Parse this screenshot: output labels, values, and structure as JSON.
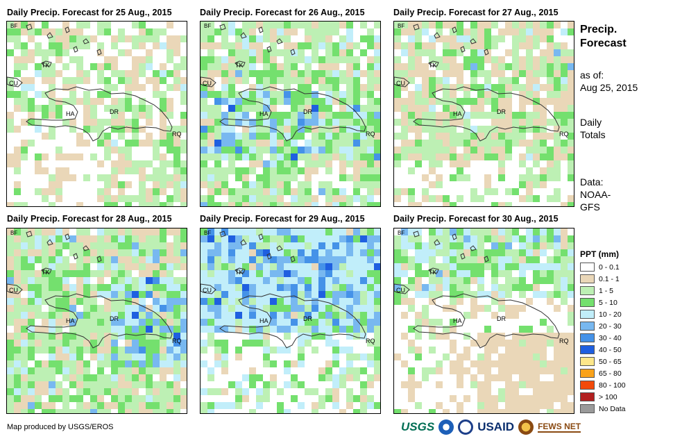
{
  "panels": [
    {
      "title": "Daily Precip. Forecast for 25 Aug., 2015",
      "scenario": "mostly-dry"
    },
    {
      "title": "Daily Precip. Forecast for 26 Aug., 2015",
      "scenario": "moderate"
    },
    {
      "title": "Daily Precip. Forecast for 27 Aug., 2015",
      "scenario": "light"
    },
    {
      "title": "Daily Precip. Forecast for 28 Aug., 2015",
      "scenario": "moderate-east"
    },
    {
      "title": "Daily Precip. Forecast for 29 Aug., 2015",
      "scenario": "wet-north"
    },
    {
      "title": "Daily Precip. Forecast for 30 Aug., 2015",
      "scenario": "dry-south"
    }
  ],
  "place_labels": [
    "BF",
    "TK",
    "CU",
    "HA",
    "DR",
    "RQ"
  ],
  "sidebar": {
    "title_line1": "Precip.",
    "title_line2": "Forecast",
    "asof_line1": "as of:",
    "asof_line2": "Aug 25, 2015",
    "totals_line1": "Daily",
    "totals_line2": "Totals",
    "data_line1": "Data:",
    "data_line2": "NOAA-",
    "data_line3": "GFS"
  },
  "legend": {
    "title": "PPT (mm)",
    "items": [
      {
        "label": "0 - 0.1",
        "color": "#ffffff"
      },
      {
        "label": "0.1 - 1",
        "color": "#ead7b8"
      },
      {
        "label": "1 - 5",
        "color": "#bdf0b4"
      },
      {
        "label": "5 - 10",
        "color": "#74e06e"
      },
      {
        "label": "10 - 20",
        "color": "#c1eefa"
      },
      {
        "label": "20 - 30",
        "color": "#78b8f0"
      },
      {
        "label": "30 - 40",
        "color": "#4592e8"
      },
      {
        "label": "40 - 50",
        "color": "#1f5fe0"
      },
      {
        "label": "50 - 65",
        "color": "#fde78a"
      },
      {
        "label": "65 - 80",
        "color": "#f9a21a"
      },
      {
        "label": "80 - 100",
        "color": "#f24a0a"
      },
      {
        "label": "> 100",
        "color": "#b22020"
      },
      {
        "label": "No Data",
        "color": "#9a9a9a"
      }
    ]
  },
  "footer": {
    "credit": "Map produced by USGS/EROS"
  },
  "logos": {
    "usgs": "USGS",
    "usaid": "USAID",
    "fews": "FEWS NET"
  },
  "colors": {
    "coast": "#333333"
  }
}
